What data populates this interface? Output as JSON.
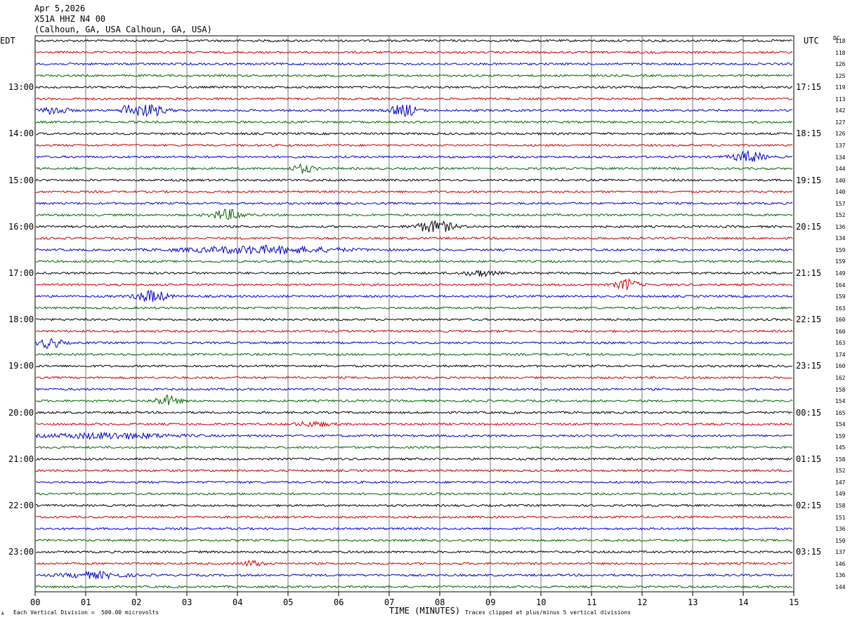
{
  "header": {
    "date": "Apr 5,2026",
    "station": "X51A HHZ N4 00",
    "location": "(Calhoun, GA, USA Calhoun, GA, USA)"
  },
  "labels": {
    "left_zone": "EDT",
    "right_zone": "UTC",
    "dc": "DC",
    "xlabel": "TIME (MINUTES)",
    "scale_note": "Each Vertical Division =  500.00 microvolts",
    "clip_note": "Traces clipped at plus/minus 5 vertical divisions",
    "corner_mark": "A"
  },
  "colors": [
    "#000000",
    "#cc0000",
    "#0000cc",
    "#006600"
  ],
  "chart_data": {
    "type": "line",
    "title": "X51A HHZ N4 00",
    "xlabel": "TIME (MINUTES)",
    "xlim": [
      0,
      15
    ],
    "x_ticks": [
      "00",
      "01",
      "02",
      "03",
      "04",
      "05",
      "06",
      "07",
      "08",
      "09",
      "10",
      "11",
      "12",
      "13",
      "14",
      "15"
    ],
    "left_hour_labels": [
      "13:00",
      "14:00",
      "15:00",
      "16:00",
      "17:00",
      "18:00",
      "19:00",
      "20:00",
      "21:00",
      "22:00",
      "23:00"
    ],
    "right_hour_labels": [
      "17:15",
      "18:15",
      "19:15",
      "20:15",
      "21:15",
      "22:15",
      "23:15",
      "00:15",
      "01:15",
      "02:15",
      "03:15"
    ],
    "dc_offsets": [
      118,
      118,
      126,
      125,
      119,
      113,
      142,
      127,
      126,
      137,
      134,
      144,
      140,
      140,
      157,
      152,
      136,
      134,
      159,
      159,
      149,
      164,
      159,
      163,
      160,
      160,
      163,
      174,
      160,
      162,
      158,
      154,
      165,
      154,
      159,
      145,
      158,
      152,
      147,
      149,
      158,
      151,
      136,
      150,
      137,
      146,
      136,
      144
    ],
    "events": [
      {
        "trace": 6,
        "minute": 0.4,
        "amp": 6,
        "dur": 0.4
      },
      {
        "trace": 6,
        "minute": 1.8,
        "amp": 10,
        "dur": 0.12
      },
      {
        "trace": 6,
        "minute": 2.2,
        "amp": 9,
        "dur": 0.6
      },
      {
        "trace": 6,
        "minute": 7.3,
        "amp": 10,
        "dur": 0.4
      },
      {
        "trace": 10,
        "minute": 14.1,
        "amp": 8,
        "dur": 0.5
      },
      {
        "trace": 11,
        "minute": 5.3,
        "amp": 6,
        "dur": 0.35
      },
      {
        "trace": 15,
        "minute": 3.8,
        "amp": 8,
        "dur": 0.5
      },
      {
        "trace": 16,
        "minute": 7.9,
        "amp": 9,
        "dur": 0.6
      },
      {
        "trace": 18,
        "minute": 4.5,
        "amp": 5,
        "dur": 2.5
      },
      {
        "trace": 20,
        "minute": 8.8,
        "amp": 4,
        "dur": 0.5
      },
      {
        "trace": 21,
        "minute": 11.7,
        "amp": 8,
        "dur": 0.35
      },
      {
        "trace": 22,
        "minute": 2.3,
        "amp": 9,
        "dur": 0.5
      },
      {
        "trace": 26,
        "minute": 0.3,
        "amp": 7,
        "dur": 0.4
      },
      {
        "trace": 31,
        "minute": 2.6,
        "amp": 7,
        "dur": 0.4
      },
      {
        "trace": 33,
        "minute": 5.5,
        "amp": 3,
        "dur": 0.6
      },
      {
        "trace": 34,
        "minute": 1.5,
        "amp": 4,
        "dur": 2.0
      },
      {
        "trace": 45,
        "minute": 4.3,
        "amp": 4,
        "dur": 0.3
      },
      {
        "trace": 46,
        "minute": 1.2,
        "amp": 4,
        "dur": 1.0
      }
    ],
    "clip_divisions": 5,
    "division_microvolts": 500.0
  }
}
